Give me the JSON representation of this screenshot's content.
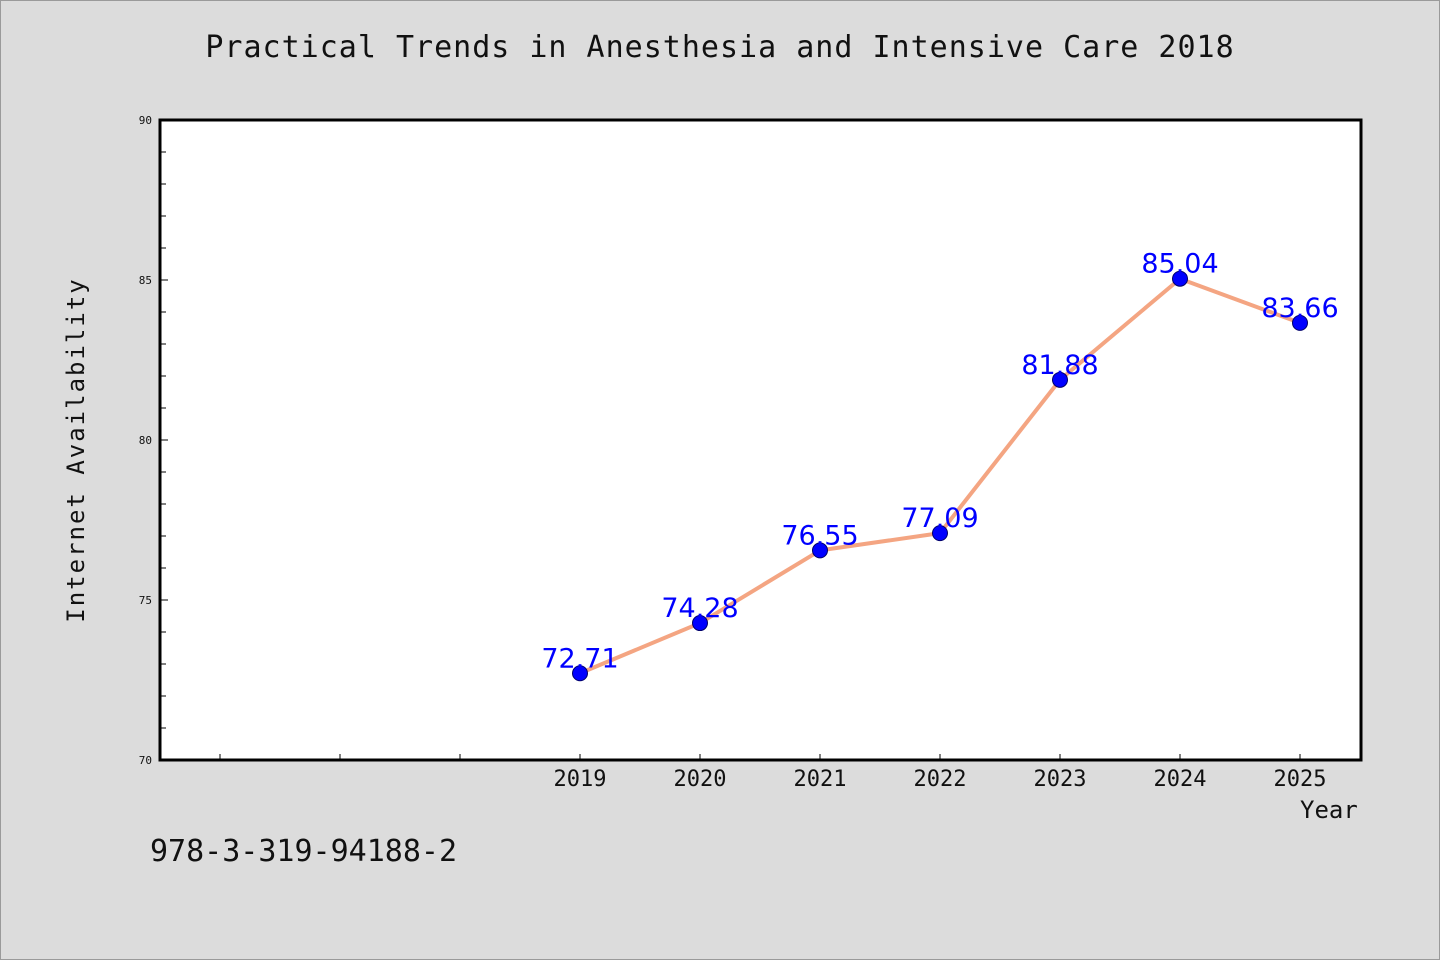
{
  "chart_data": {
    "type": "line",
    "title": "Practical Trends in Anesthesia and Intensive Care 2018",
    "xlabel": "Year",
    "ylabel": "Internet Availability",
    "x": [
      "2019",
      "2020",
      "2021",
      "2022",
      "2023",
      "2024",
      "2025"
    ],
    "series": [
      {
        "values": [
          72.71,
          74.28,
          76.55,
          77.09,
          81.88,
          85.04,
          83.66
        ],
        "data_labels": [
          "72.71",
          "74.28",
          "76.55",
          "77.09",
          "81.88",
          "85.04",
          "83.66"
        ]
      }
    ],
    "ylim": [
      70,
      90
    ],
    "yticks": [
      "70",
      "75",
      "80",
      "85",
      "90"
    ],
    "grid": false,
    "line_color": "#f4a582",
    "marker_color": "#0000ff",
    "label_color": "#0000ff"
  },
  "footnote": "978-3-319-94188-2"
}
